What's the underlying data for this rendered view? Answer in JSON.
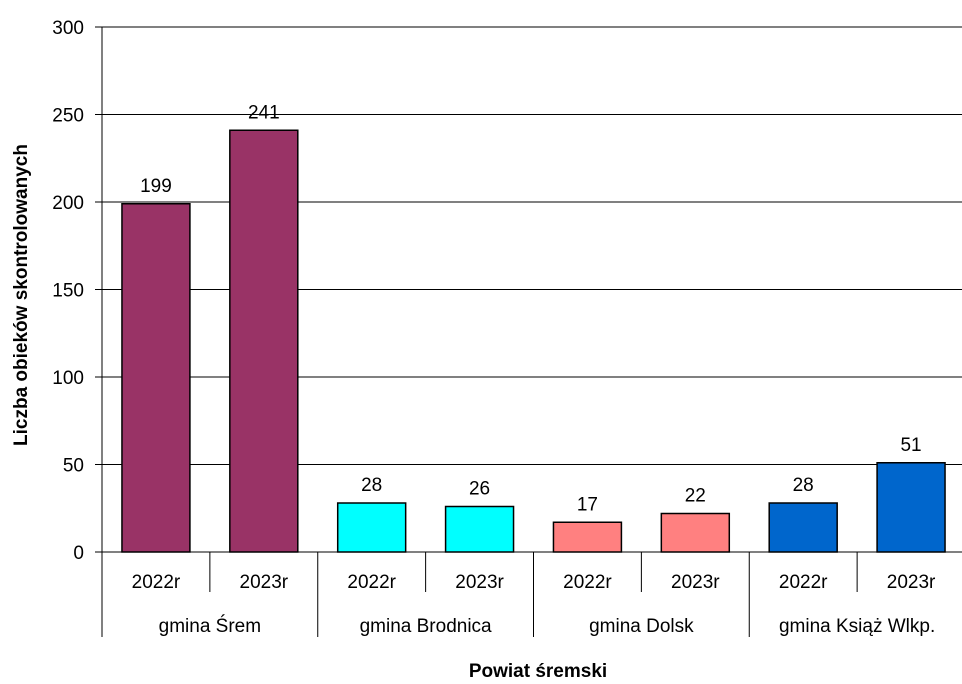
{
  "chart_data": {
    "type": "bar",
    "title": "",
    "xlabel": "Powiat śremski",
    "ylabel": "Liczba obieków skontrolowanych",
    "ylim": [
      0,
      300
    ],
    "yticks": [
      "0",
      "50",
      "100",
      "150",
      "200",
      "250",
      "300"
    ],
    "grid": true,
    "legend": "none",
    "groups": [
      {
        "name": "gmina Śrem",
        "color": "#993366",
        "bars": [
          {
            "category": "2022r",
            "value": 199,
            "label": "199"
          },
          {
            "category": "2023r",
            "value": 241,
            "label": "241"
          }
        ]
      },
      {
        "name": "gmina Brodnica",
        "color": "#00FFFF",
        "bars": [
          {
            "category": "2022r",
            "value": 28,
            "label": "28"
          },
          {
            "category": "2023r",
            "value": 26,
            "label": "26"
          }
        ]
      },
      {
        "name": "gmina Dolsk",
        "color": "#FF8080",
        "bars": [
          {
            "category": "2022r",
            "value": 17,
            "label": "17"
          },
          {
            "category": "2023r",
            "value": 22,
            "label": "22"
          }
        ]
      },
      {
        "name": "gmina Książ Wlkp.",
        "color": "#0066CC",
        "bars": [
          {
            "category": "2022r",
            "value": 28,
            "label": "28"
          },
          {
            "category": "2023r",
            "value": 51,
            "label": "51"
          }
        ]
      }
    ]
  }
}
